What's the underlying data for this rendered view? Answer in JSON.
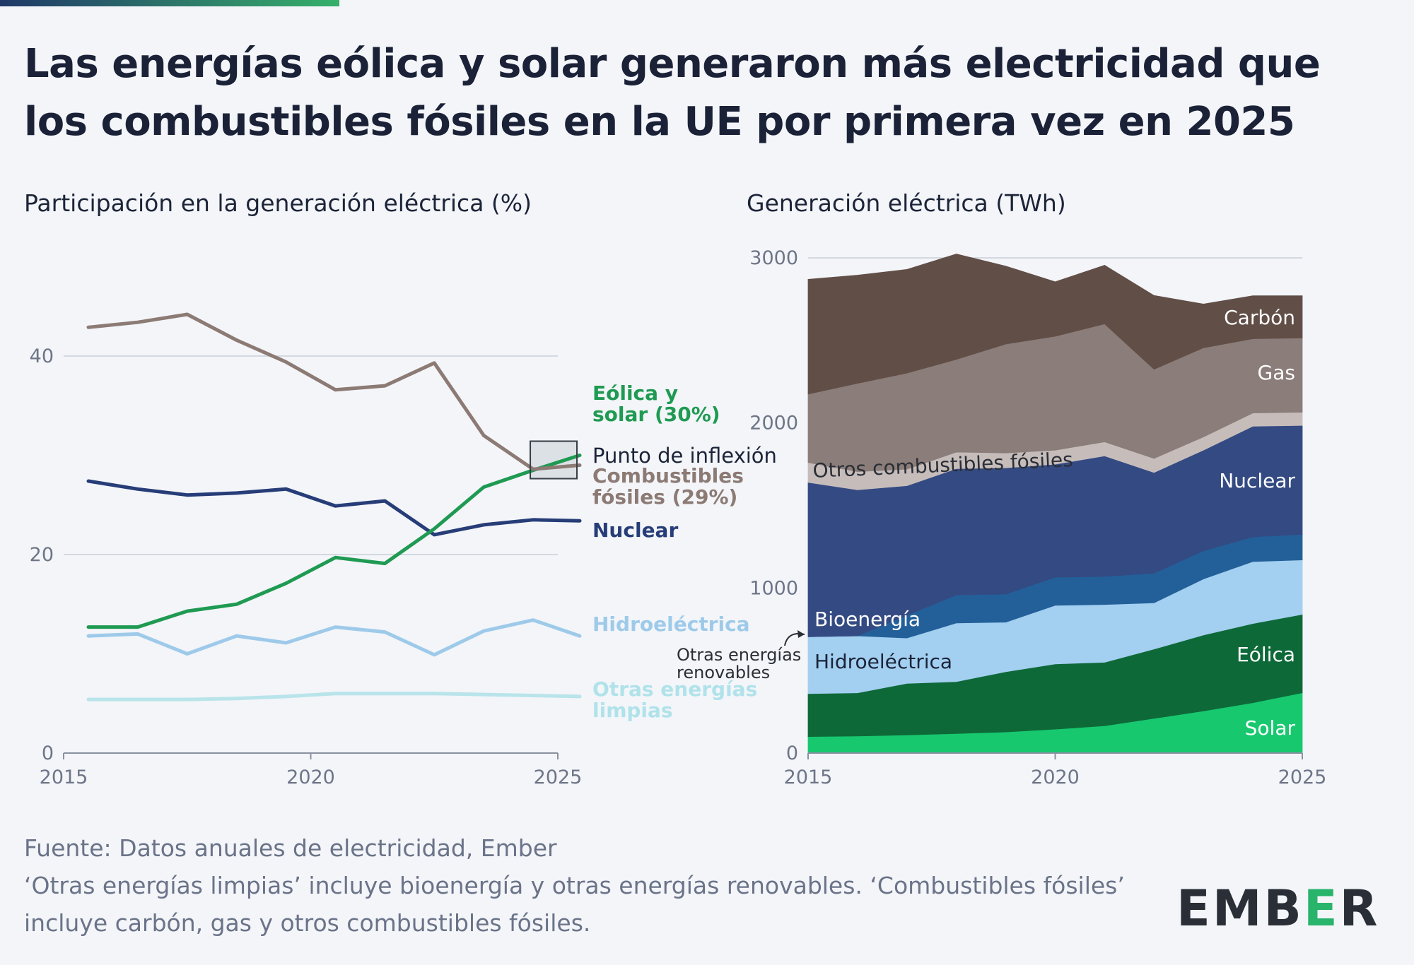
{
  "title": "Las energías eólica y solar generaron más electricidad que los combustibles fósiles en la UE por primera vez en 2025",
  "left_chart_title": "Participación en la generación eléctrica (%)",
  "right_chart_title": "Generación eléctrica (TWh)",
  "footer": {
    "source": "Fuente: Datos anuales de electricidad, Ember",
    "note": "‘Otras energías limpias’ incluye bioenergía y otras energías renovables. ‘Combustibles fósiles’ incluye carbón, gas y otros combustibles fósiles."
  },
  "logo": {
    "pre": "EMB",
    "e": "E",
    "post": "R"
  },
  "colors": {
    "wind_solar": "#1f9a52",
    "fossil": "#8c7a74",
    "nuclear": "#273d78",
    "hydro": "#9ecaea",
    "other_clean": "#b8e4ea",
    "coal": "#614e47",
    "gas": "#8b7d79",
    "other_fossil": "#c6bdbb",
    "nuclear_area": "#344a82",
    "bio": "#23609a",
    "hydro_area": "#a3cff0",
    "wind": "#0e6938",
    "solar": "#17c86f"
  },
  "chart_data": [
    {
      "type": "line",
      "title": "Participación en la generación eléctrica (%)",
      "x": [
        2015,
        2016,
        2017,
        2018,
        2019,
        2020,
        2021,
        2022,
        2023,
        2024,
        2025
      ],
      "xticks": [
        2015,
        2020,
        2025
      ],
      "yticks": [
        0,
        20,
        40
      ],
      "xlim": [
        2015,
        2025
      ],
      "ylim": [
        0,
        45
      ],
      "series": [
        {
          "name": "Combustibles fósiles",
          "label": "Combustibles fósiles (29%)",
          "label_lines": [
            "Combustibles",
            "fósiles (29%)"
          ],
          "color_key": "fossil",
          "values": [
            42.9,
            43.4,
            44.2,
            41.6,
            39.4,
            36.6,
            37.0,
            39.3,
            32.0,
            28.6,
            29.0
          ]
        },
        {
          "name": "Eólica y solar",
          "label": "Eólica y solar (30%)",
          "label_lines": [
            "Eólica y",
            "solar (30%)"
          ],
          "color_key": "wind_solar",
          "values": [
            12.7,
            12.7,
            14.3,
            15.0,
            17.1,
            19.7,
            19.1,
            22.6,
            26.8,
            28.5,
            30.0
          ]
        },
        {
          "name": "Nuclear",
          "label": "Nuclear",
          "label_lines": [
            "Nuclear"
          ],
          "color_key": "nuclear",
          "values": [
            27.4,
            26.6,
            26.0,
            26.2,
            26.6,
            24.9,
            25.4,
            22.0,
            23.0,
            23.5,
            23.4
          ]
        },
        {
          "name": "Hidroeléctrica",
          "label": "Hidroeléctrica",
          "label_lines": [
            "Hidroeléctrica"
          ],
          "color_key": "hydro",
          "values": [
            11.8,
            12.0,
            10.0,
            11.8,
            11.1,
            12.7,
            12.2,
            9.9,
            12.3,
            13.4,
            11.8
          ]
        },
        {
          "name": "Otras energías limpias",
          "label": "Otras energías limpias",
          "label_lines": [
            "Otras energías",
            "limpias"
          ],
          "color_key": "other_clean",
          "values": [
            5.4,
            5.4,
            5.4,
            5.5,
            5.7,
            6.0,
            6.0,
            6.0,
            5.9,
            5.8,
            5.7
          ]
        }
      ],
      "annotation": {
        "text": "Punto de inflexión",
        "x": 2024.6,
        "y": 29.5
      }
    },
    {
      "type": "area",
      "title": "Generación eléctrica (TWh)",
      "x": [
        2015,
        2016,
        2017,
        2018,
        2019,
        2020,
        2021,
        2022,
        2023,
        2024,
        2025
      ],
      "xticks": [
        2015,
        2020,
        2025
      ],
      "yticks": [
        0,
        1000,
        2000,
        3000
      ],
      "xlim": [
        2015,
        2025
      ],
      "ylim": [
        0,
        3000
      ],
      "stacked": true,
      "series": [
        {
          "name": "Solar",
          "color_key": "solar",
          "values": [
            100,
            103,
            110,
            118,
            128,
            145,
            165,
            210,
            255,
            305,
            365
          ]
        },
        {
          "name": "Eólica",
          "color_key": "wind",
          "values": [
            260,
            262,
            312,
            315,
            365,
            395,
            385,
            420,
            460,
            480,
            475
          ]
        },
        {
          "name": "Hidroeléctrica",
          "color_key": "hydro_area",
          "values": [
            345,
            345,
            275,
            355,
            300,
            355,
            350,
            280,
            340,
            375,
            330
          ]
        },
        {
          "name": "Bioenergía",
          "color_key": "bio",
          "values": [
            0,
            0,
            138,
            170,
            170,
            170,
            170,
            180,
            170,
            150,
            155
          ]
        },
        {
          "name": "Nuclear",
          "color_key": "nuclear_area",
          "values": [
            935,
            885,
            785,
            765,
            765,
            685,
            730,
            610,
            610,
            670,
            660
          ]
        },
        {
          "name": "Otros combustibles fósiles",
          "color_key": "other_fossil",
          "values": [
            120,
            110,
            100,
            100,
            90,
            85,
            85,
            85,
            80,
            80,
            80
          ]
        },
        {
          "name": "Gas",
          "color_key": "gas",
          "values": [
            415,
            535,
            582,
            562,
            660,
            690,
            715,
            540,
            540,
            450,
            450
          ]
        },
        {
          "name": "Carbón",
          "color_key": "coal",
          "values": [
            695,
            655,
            628,
            638,
            472,
            330,
            355,
            447,
            265,
            260,
            255
          ]
        }
      ],
      "labels": {
        "carbon": "Carbón",
        "gas": "Gas",
        "other_fossil": "Otros combustibles fósiles",
        "nuclear": "Nuclear",
        "bio": "Bioenergía",
        "hydro": "Hidroeléctrica",
        "wind": "Eólica",
        "solar": "Solar",
        "other_renewables_lines": [
          "Otras energías",
          "renovables"
        ]
      }
    }
  ]
}
